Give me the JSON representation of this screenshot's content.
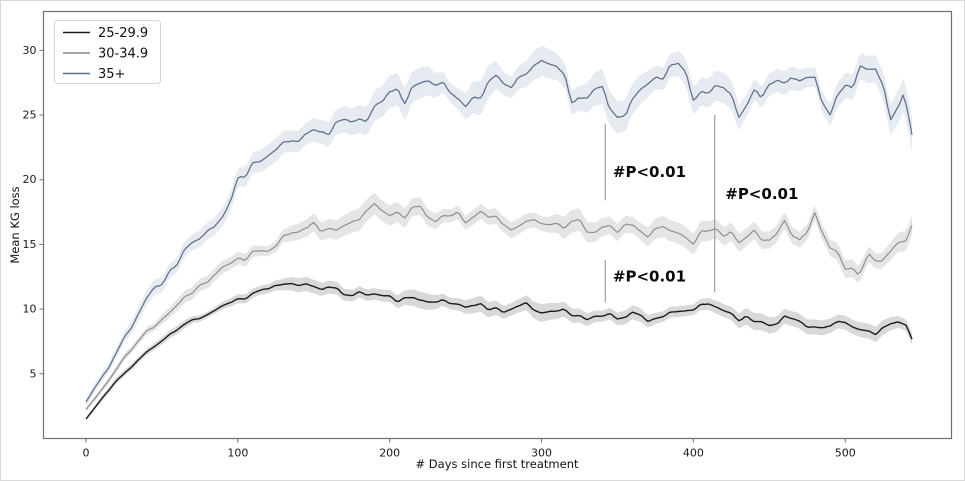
{
  "figure": {
    "background": "#ffffff",
    "border_color": "#d9d9d9"
  },
  "chart_data": {
    "type": "line",
    "title": "",
    "xlabel": "# Days since first treatment",
    "ylabel": "Mean KG loss",
    "xlim": [
      -28,
      570
    ],
    "ylim": [
      0,
      33
    ],
    "x_ticks": [
      0,
      100,
      200,
      300,
      400,
      500
    ],
    "y_ticks": [
      5,
      10,
      15,
      20,
      25,
      30
    ],
    "grid": false,
    "legend_position": "upper-left",
    "colors": {
      "spine": "#707070",
      "tick_label": "#1a1a1a",
      "annotation_line": "#a0a6ac",
      "annotation_text": "#0a0a0a",
      "legend_border": "#d5d5d5",
      "legend_bg": "#ffffff"
    },
    "series": [
      {
        "name": "25-29.9",
        "color": "#1c1c1c",
        "band_color": "rgba(120,120,120,0.28)",
        "line_width": 1.4,
        "noise_amp": 0.42,
        "band_halfwidth": 0.55,
        "seed": 11,
        "anchors": [
          [
            0,
            1.5
          ],
          [
            10,
            3.0
          ],
          [
            20,
            4.4
          ],
          [
            30,
            5.6
          ],
          [
            40,
            6.7
          ],
          [
            50,
            7.6
          ],
          [
            60,
            8.4
          ],
          [
            70,
            9.1
          ],
          [
            80,
            9.7
          ],
          [
            90,
            10.2
          ],
          [
            100,
            10.7
          ],
          [
            110,
            11.1
          ],
          [
            120,
            11.5
          ],
          [
            130,
            11.9
          ],
          [
            140,
            12.0
          ],
          [
            150,
            11.9
          ],
          [
            160,
            11.6
          ],
          [
            170,
            11.3
          ],
          [
            180,
            11.3
          ],
          [
            190,
            11.2
          ],
          [
            200,
            10.9
          ],
          [
            210,
            10.8
          ],
          [
            220,
            10.6
          ],
          [
            230,
            10.8
          ],
          [
            240,
            10.5
          ],
          [
            250,
            10.3
          ],
          [
            260,
            10.4
          ],
          [
            270,
            10.1
          ],
          [
            280,
            10.0
          ],
          [
            290,
            10.2
          ],
          [
            300,
            9.8
          ],
          [
            310,
            10.0
          ],
          [
            320,
            9.6
          ],
          [
            330,
            9.4
          ],
          [
            340,
            9.6
          ],
          [
            350,
            9.3
          ],
          [
            360,
            9.6
          ],
          [
            370,
            9.2
          ],
          [
            380,
            9.5
          ],
          [
            390,
            9.7
          ],
          [
            400,
            10.0
          ],
          [
            410,
            10.3
          ],
          [
            420,
            9.9
          ],
          [
            430,
            9.3
          ],
          [
            440,
            9.1
          ],
          [
            450,
            9.0
          ],
          [
            460,
            9.4
          ],
          [
            470,
            9.0
          ],
          [
            480,
            8.7
          ],
          [
            490,
            8.4
          ],
          [
            500,
            8.9
          ],
          [
            510,
            8.5
          ],
          [
            520,
            8.2
          ],
          [
            530,
            8.7
          ],
          [
            540,
            8.6
          ],
          [
            545,
            7.6
          ]
        ]
      },
      {
        "name": "30-34.9",
        "color": "#8c8c8c",
        "band_color": "rgba(160,160,160,0.28)",
        "line_width": 1.15,
        "noise_amp": 0.7,
        "band_halfwidth": 0.7,
        "seed": 22,
        "anchors": [
          [
            0,
            2.2
          ],
          [
            10,
            3.8
          ],
          [
            20,
            5.4
          ],
          [
            30,
            6.9
          ],
          [
            40,
            8.3
          ],
          [
            50,
            9.4
          ],
          [
            60,
            10.4
          ],
          [
            70,
            11.3
          ],
          [
            80,
            12.1
          ],
          [
            90,
            12.9
          ],
          [
            100,
            13.6
          ],
          [
            110,
            14.3
          ],
          [
            120,
            14.9
          ],
          [
            130,
            15.5
          ],
          [
            140,
            16.0
          ],
          [
            150,
            16.4
          ],
          [
            160,
            16.6
          ],
          [
            170,
            16.9
          ],
          [
            180,
            17.2
          ],
          [
            190,
            18.3
          ],
          [
            200,
            17.7
          ],
          [
            210,
            17.4
          ],
          [
            220,
            17.8
          ],
          [
            230,
            17.2
          ],
          [
            240,
            17.5
          ],
          [
            250,
            16.9
          ],
          [
            260,
            17.3
          ],
          [
            270,
            17.0
          ],
          [
            280,
            16.6
          ],
          [
            290,
            17.1
          ],
          [
            300,
            16.8
          ],
          [
            310,
            16.3
          ],
          [
            320,
            16.8
          ],
          [
            330,
            16.2
          ],
          [
            340,
            16.6
          ],
          [
            350,
            15.9
          ],
          [
            360,
            16.4
          ],
          [
            370,
            15.8
          ],
          [
            380,
            16.2
          ],
          [
            390,
            15.7
          ],
          [
            400,
            15.5
          ],
          [
            410,
            16.4
          ],
          [
            420,
            15.9
          ],
          [
            430,
            15.3
          ],
          [
            440,
            15.6
          ],
          [
            450,
            15.1
          ],
          [
            460,
            16.8
          ],
          [
            470,
            15.0
          ],
          [
            480,
            17.2
          ],
          [
            490,
            14.7
          ],
          [
            500,
            13.3
          ],
          [
            508,
            12.9
          ],
          [
            516,
            14.3
          ],
          [
            524,
            13.9
          ],
          [
            532,
            14.8
          ],
          [
            540,
            15.4
          ],
          [
            545,
            16.9
          ]
        ]
      },
      {
        "name": "35+",
        "color": "#5e6f88",
        "band_color": "rgba(140,160,190,0.22)",
        "line_width": 1.25,
        "noise_amp": 1.1,
        "band_halfwidth": 1.05,
        "seed": 33,
        "anchors": [
          [
            0,
            2.8
          ],
          [
            10,
            4.6
          ],
          [
            20,
            6.6
          ],
          [
            30,
            8.6
          ],
          [
            40,
            10.6
          ],
          [
            50,
            12.2
          ],
          [
            60,
            13.6
          ],
          [
            70,
            14.8
          ],
          [
            80,
            16.2
          ],
          [
            90,
            17.8
          ],
          [
            100,
            19.6
          ],
          [
            110,
            20.9
          ],
          [
            120,
            21.8
          ],
          [
            130,
            22.3
          ],
          [
            140,
            22.8
          ],
          [
            150,
            23.3
          ],
          [
            160,
            23.8
          ],
          [
            170,
            24.3
          ],
          [
            180,
            25.0
          ],
          [
            190,
            25.8
          ],
          [
            200,
            26.6
          ],
          [
            210,
            26.2
          ],
          [
            220,
            26.8
          ],
          [
            230,
            27.2
          ],
          [
            240,
            27.0
          ],
          [
            250,
            26.4
          ],
          [
            260,
            27.3
          ],
          [
            270,
            27.8
          ],
          [
            280,
            26.9
          ],
          [
            290,
            27.6
          ],
          [
            300,
            28.8
          ],
          [
            310,
            27.9
          ],
          [
            320,
            26.2
          ],
          [
            330,
            25.7
          ],
          [
            340,
            26.4
          ],
          [
            350,
            25.3
          ],
          [
            360,
            25.6
          ],
          [
            370,
            26.8
          ],
          [
            380,
            27.6
          ],
          [
            390,
            28.3
          ],
          [
            400,
            26.8
          ],
          [
            410,
            27.5
          ],
          [
            420,
            27.2
          ],
          [
            430,
            24.9
          ],
          [
            440,
            26.3
          ],
          [
            450,
            27.6
          ],
          [
            460,
            28.3
          ],
          [
            470,
            27.4
          ],
          [
            480,
            27.6
          ],
          [
            490,
            25.3
          ],
          [
            500,
            26.6
          ],
          [
            510,
            27.8
          ],
          [
            520,
            28.0
          ],
          [
            530,
            24.8
          ],
          [
            538,
            26.2
          ],
          [
            545,
            23.2
          ]
        ]
      }
    ],
    "annotations": {
      "vlines": [
        {
          "x": 342,
          "segments": [
            [
              18.4,
              24.3
            ],
            [
              10.5,
              13.8
            ]
          ]
        },
        {
          "x": 414,
          "segments": [
            [
              11.3,
              25.0
            ]
          ]
        }
      ],
      "labels": [
        {
          "text": "#P<0.01",
          "x": 347,
          "y": 20.55
        },
        {
          "text": "#P<0.01",
          "x": 421,
          "y": 18.85
        },
        {
          "text": "#P<0.01",
          "x": 347,
          "y": 12.5
        }
      ]
    }
  }
}
